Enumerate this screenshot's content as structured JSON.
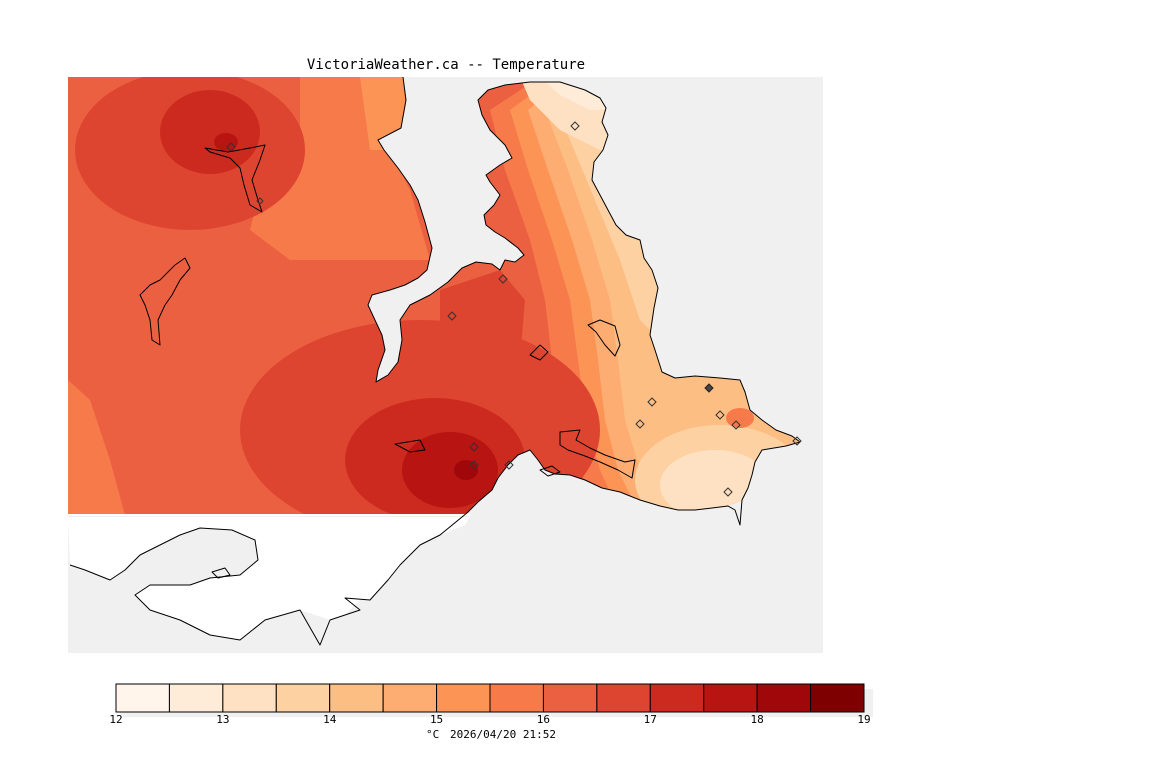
{
  "title": "VictoriaWeather.ca -- Temperature",
  "map": {
    "water_color": "#f0f0f0",
    "no_data_land_color": "#ffffff",
    "coastline_color": "#000000",
    "station_marker": "diamond"
  },
  "legend": {
    "unit": "°C",
    "timestamp": "2026/04/20 21:52",
    "tick_labels": [
      "12",
      "13",
      "14",
      "15",
      "16",
      "17",
      "18",
      "19"
    ],
    "bins": [
      {
        "min": 12.0,
        "max": 12.5,
        "color": "#fff5eb"
      },
      {
        "min": 12.5,
        "max": 13.0,
        "color": "#feecd9"
      },
      {
        "min": 13.0,
        "max": 13.5,
        "color": "#fee1c2"
      },
      {
        "min": 13.5,
        "max": 14.0,
        "color": "#fdd1a2"
      },
      {
        "min": 14.0,
        "max": 14.5,
        "color": "#fdbe84"
      },
      {
        "min": 14.5,
        "max": 15.0,
        "color": "#fdac72"
      },
      {
        "min": 15.0,
        "max": 15.5,
        "color": "#fc9456"
      },
      {
        "min": 15.5,
        "max": 16.0,
        "color": "#f77a4b"
      },
      {
        "min": 16.0,
        "max": 16.5,
        "color": "#ec6042"
      },
      {
        "min": 16.5,
        "max": 17.0,
        "color": "#de4530"
      },
      {
        "min": 17.0,
        "max": 17.5,
        "color": "#cc2a1f"
      },
      {
        "min": 17.5,
        "max": 18.0,
        "color": "#b81412"
      },
      {
        "min": 18.0,
        "max": 18.5,
        "color": "#a0070b"
      },
      {
        "min": 18.5,
        "max": 19.0,
        "color": "#7f0000"
      }
    ]
  }
}
